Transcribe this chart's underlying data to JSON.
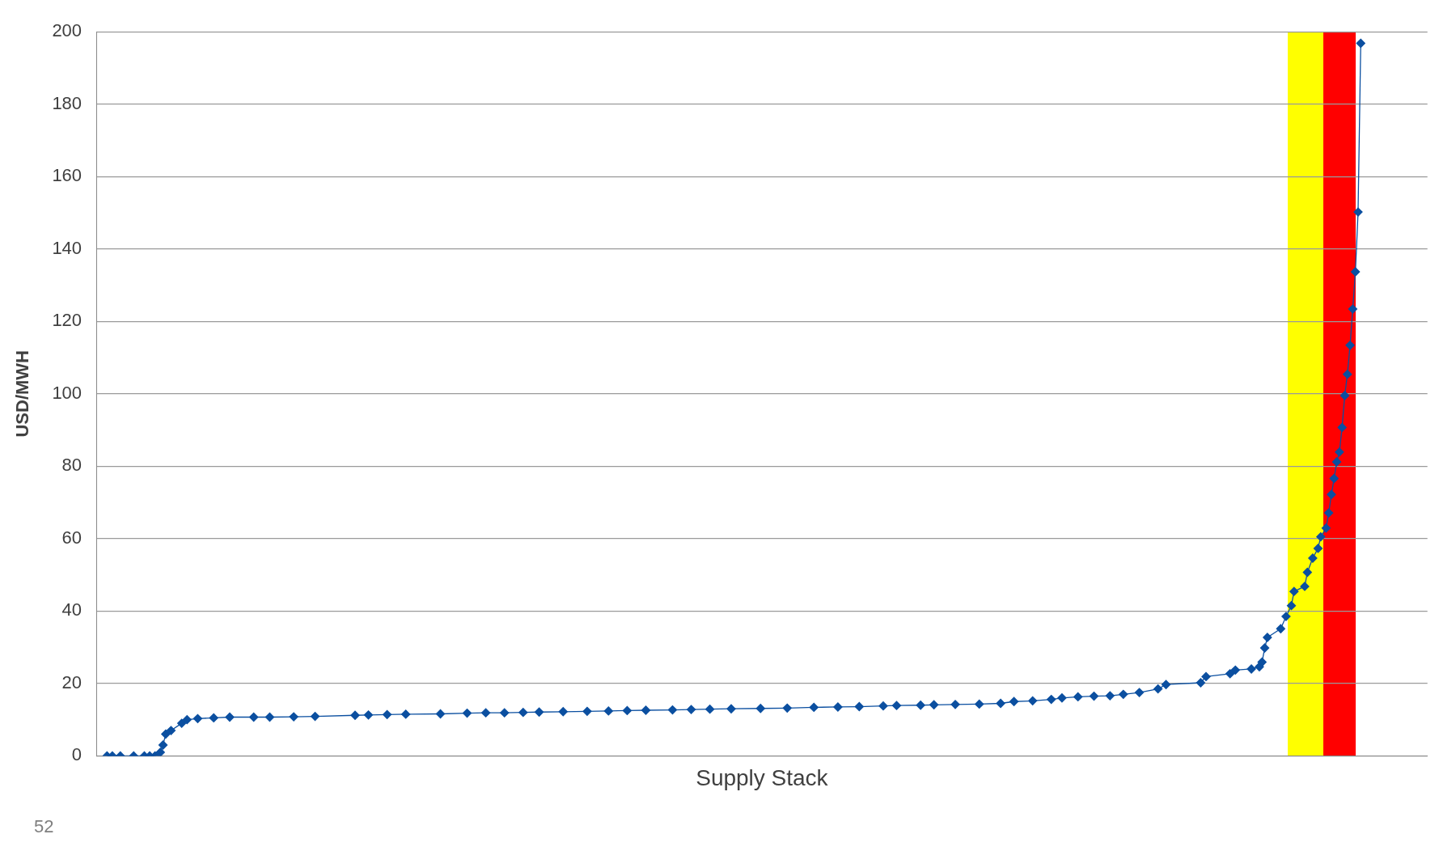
{
  "chart_data": {
    "type": "line",
    "xlabel": "Supply Stack",
    "ylabel": "USD/MWH",
    "annotations": [
      "52"
    ],
    "categories": [
      null,
      null,
      null,
      null,
      null,
      null,
      null,
      null,
      null,
      null,
      null,
      null,
      null,
      null,
      null,
      null,
      null,
      null,
      null,
      null,
      null,
      null,
      null,
      null,
      null,
      null,
      null,
      null,
      null,
      null,
      null,
      null,
      null,
      null,
      null,
      null,
      null,
      null,
      null,
      null,
      null,
      null,
      null,
      null,
      null,
      null,
      null,
      null,
      null,
      null,
      null,
      null,
      null,
      null,
      null,
      null,
      null,
      null,
      null,
      null,
      null,
      null,
      null,
      null,
      null,
      null,
      null,
      null,
      null,
      null,
      null,
      null,
      null,
      null,
      null,
      null,
      null,
      null,
      null,
      null,
      null,
      null,
      null,
      null,
      null,
      null,
      null,
      null,
      null,
      null,
      null,
      null,
      null,
      null,
      null,
      null,
      null,
      null,
      null,
      null,
      null,
      null,
      null,
      null,
      null,
      null,
      null,
      null,
      null,
      null,
      null,
      null,
      null,
      null,
      null,
      null,
      null,
      null,
      null,
      null,
      null,
      null,
      null,
      null,
      null,
      null,
      null,
      null,
      null,
      null,
      null,
      null,
      null,
      null,
      null,
      null,
      null,
      null,
      null,
      null,
      null,
      null,
      null,
      null,
      null,
      null,
      null,
      null,
      null,
      null,
      null,
      null,
      null,
      null,
      null,
      null,
      null,
      null,
      null,
      null,
      null,
      null,
      null,
      null,
      null,
      null,
      null,
      null,
      null,
      null,
      null,
      null,
      null,
      null,
      null,
      null,
      null,
      null,
      null,
      null,
      null,
      null,
      null,
      null,
      null,
      null,
      null,
      null,
      null,
      null,
      null,
      null,
      null,
      null,
      null,
      null,
      null,
      null,
      null,
      null,
      null,
      null,
      null,
      null,
      null,
      null,
      null,
      null,
      null,
      null,
      null,
      null,
      null,
      null,
      null,
      null,
      null,
      null,
      null,
      null,
      null,
      null,
      null,
      null,
      null,
      null,
      null,
      null,
      null,
      null,
      null,
      null,
      null,
      null,
      null,
      null,
      null,
      null,
      null,
      null,
      null,
      null,
      null,
      null,
      null,
      null,
      null,
      null,
      null,
      null,
      null,
      null,
      null,
      null,
      null,
      null,
      null,
      null,
      null,
      null,
      null,
      null,
      null,
      null,
      null,
      null,
      null,
      null,
      null,
      null,
      null,
      null,
      null,
      null,
      null,
      null,
      null,
      null,
      null,
      null,
      null,
      null,
      null,
      null,
      null,
      null,
      null,
      null,
      null,
      null,
      null,
      null,
      null,
      null,
      null,
      null,
      null,
      null,
      null,
      null,
      null,
      null,
      null,
      null,
      null,
      null,
      null,
      null,
      null,
      null,
      null,
      null,
      null,
      null,
      null,
      null,
      null,
      null,
      null,
      null,
      null,
      null,
      null,
      null,
      null,
      null,
      null,
      null,
      null,
      null,
      null,
      null,
      null,
      null,
      null,
      null,
      null,
      null,
      null,
      null,
      null,
      null,
      null,
      null,
      null,
      null,
      null,
      null,
      null,
      null,
      null,
      null,
      null,
      null,
      null,
      null,
      null,
      null,
      null,
      null,
      null,
      null,
      null,
      null,
      null,
      null,
      null,
      null,
      null,
      null,
      null,
      null,
      null,
      null,
      null,
      null,
      null,
      null,
      null,
      null,
      null,
      null,
      null,
      null,
      null,
      null,
      null,
      null,
      null,
      null,
      null,
      null,
      null,
      null,
      null,
      null,
      null,
      null,
      null,
      null,
      null,
      null,
      null,
      null,
      null,
      null,
      null,
      null,
      null,
      null,
      null,
      null,
      null,
      null,
      null,
      null,
      null,
      null,
      null,
      null,
      null,
      null,
      null,
      null,
      null,
      null,
      null,
      null,
      null,
      null,
      null,
      null,
      null,
      null,
      null,
      null,
      null,
      null,
      null,
      null,
      null,
      null,
      null,
      null,
      null,
      null,
      null,
      null,
      null,
      null,
      null,
      null,
      null,
      null,
      null,
      null,
      null,
      null,
      null,
      null,
      null,
      null,
      null,
      null,
      null,
      null,
      null,
      null,
      null,
      null,
      null,
      null,
      null,
      null,
      null,
      null,
      null,
      null,
      null,
      null,
      null,
      null,
      null,
      null,
      null,
      null,
      null,
      null,
      null,
      null,
      null,
      null,
      null,
      null,
      null,
      null,
      null,
      null,
      null,
      null
    ],
    "ylim": [
      0,
      200
    ],
    "yticks": [
      0,
      20,
      40,
      60,
      80,
      100,
      120,
      140,
      160,
      180,
      200
    ],
    "tick_labels": "y",
    "grid": "y",
    "marker": "diamond",
    "line_style": "solid",
    "legend": false,
    "series": [
      {
        "color": "#0b4fa0",
        "values": [
          null,
          null,
          null,
          null,
          0,
          null,
          0,
          null,
          null,
          0,
          null,
          null,
          null,
          null,
          0,
          null,
          null,
          null,
          0,
          null,
          0,
          null,
          0,
          null,
          1,
          3,
          6,
          null,
          7,
          null,
          null,
          null,
          9,
          null,
          10,
          null,
          null,
          null,
          10.3,
          null,
          null,
          null,
          null,
          null,
          10.5,
          null,
          null,
          null,
          null,
          null,
          10.7,
          null,
          null,
          null,
          null,
          null,
          null,
          null,
          null,
          10.7,
          null,
          null,
          null,
          null,
          null,
          10.7,
          null,
          null,
          null,
          null,
          null,
          null,
          null,
          null,
          10.8,
          null,
          null,
          null,
          null,
          null,
          null,
          null,
          10.9,
          null,
          null,
          null,
          null,
          null,
          null,
          null,
          null,
          null,
          null,
          null,
          null,
          null,
          null,
          11.2,
          null,
          null,
          null,
          null,
          11.3,
          null,
          null,
          null,
          null,
          null,
          null,
          11.4,
          null,
          null,
          null,
          null,
          null,
          null,
          11.5,
          null,
          null,
          null,
          null,
          null,
          null,
          null,
          null,
          null,
          null,
          null,
          null,
          11.6,
          null,
          null,
          null,
          null,
          null,
          null,
          null,
          null,
          null,
          11.8,
          null,
          null,
          null,
          null,
          null,
          null,
          11.9,
          null,
          null,
          null,
          null,
          null,
          null,
          11.9,
          null,
          null,
          null,
          null,
          null,
          null,
          12,
          null,
          null,
          null,
          null,
          null,
          12.1,
          null,
          null,
          null,
          null,
          null,
          null,
          null,
          null,
          12.2,
          null,
          null,
          null,
          null,
          null,
          null,
          null,
          null,
          12.3,
          null,
          null,
          null,
          null,
          null,
          null,
          null,
          12.4,
          null,
          null,
          null,
          null,
          null,
          null,
          12.5,
          null,
          null,
          null,
          null,
          null,
          null,
          12.6,
          null,
          null,
          null,
          null,
          null,
          null,
          null,
          null,
          null,
          12.7,
          null,
          null,
          null,
          null,
          null,
          null,
          12.8,
          null,
          null,
          null,
          null,
          null,
          null,
          12.9,
          null,
          null,
          null,
          null,
          null,
          null,
          null,
          13.0,
          null,
          null,
          null,
          null,
          null,
          null,
          null,
          null,
          null,
          null,
          13.1,
          null,
          null,
          null,
          null,
          null,
          null,
          null,
          null,
          null,
          13.2,
          null,
          null,
          null,
          null,
          null,
          null,
          null,
          null,
          null,
          13.4,
          null,
          null,
          null,
          null,
          null,
          null,
          null,
          null,
          13.5,
          null,
          null,
          null,
          null,
          null,
          null,
          null,
          13.6,
          null,
          null,
          null,
          null,
          null,
          null,
          null,
          null,
          13.8,
          null,
          null,
          null,
          null,
          13.9,
          null,
          null,
          null,
          null,
          null,
          null,
          null,
          null,
          14,
          null,
          null,
          null,
          null,
          14.1,
          null,
          null,
          null,
          null,
          null,
          null,
          null,
          14.2,
          null,
          null,
          null,
          null,
          null,
          null,
          null,
          null,
          14.3,
          null,
          null,
          null,
          null,
          null,
          null,
          null,
          14.5,
          null,
          null,
          null,
          null,
          15,
          null,
          null,
          null,
          null,
          null,
          null,
          15.2,
          null,
          null,
          null,
          null,
          null,
          null,
          15.6,
          null,
          null,
          null,
          16,
          null,
          null,
          null,
          null,
          null,
          16.3,
          null,
          null,
          null,
          null,
          null,
          16.5,
          null,
          null,
          null,
          null,
          null,
          16.6,
          null,
          null,
          null,
          null,
          17,
          null,
          null,
          null,
          null,
          null,
          17.5,
          null,
          null,
          null,
          null,
          null,
          null,
          18.5,
          null,
          null,
          19.7,
          null,
          null,
          null,
          null,
          null,
          null,
          null,
          null,
          null,
          null,
          null,
          null,
          20.2,
          null,
          21.9,
          null,
          null,
          null,
          null,
          null,
          null,
          null,
          null,
          22.7,
          null,
          23.7,
          null,
          null,
          null,
          null,
          null,
          24,
          null,
          null,
          24.6,
          25.9,
          29.8,
          32.7,
          null,
          null,
          null,
          null,
          35.1,
          null,
          38.5,
          null,
          41.5,
          45.4,
          null,
          null,
          null,
          46.8,
          50.7,
          null,
          54.6,
          null,
          57.3,
          60.5,
          null,
          62.9,
          67.1,
          72.2,
          76.6,
          81.2,
          83.9,
          90.7,
          99.5,
          105.4,
          113.4,
          123.4,
          133.7,
          150.2,
          196.8,
          null,
          null,
          null,
          null,
          null,
          null,
          null,
          null,
          null,
          null,
          null,
          null,
          null,
          null,
          null,
          null,
          null,
          null,
          null,
          null,
          null,
          null,
          null,
          null,
          null
        ]
      }
    ]
  }
}
